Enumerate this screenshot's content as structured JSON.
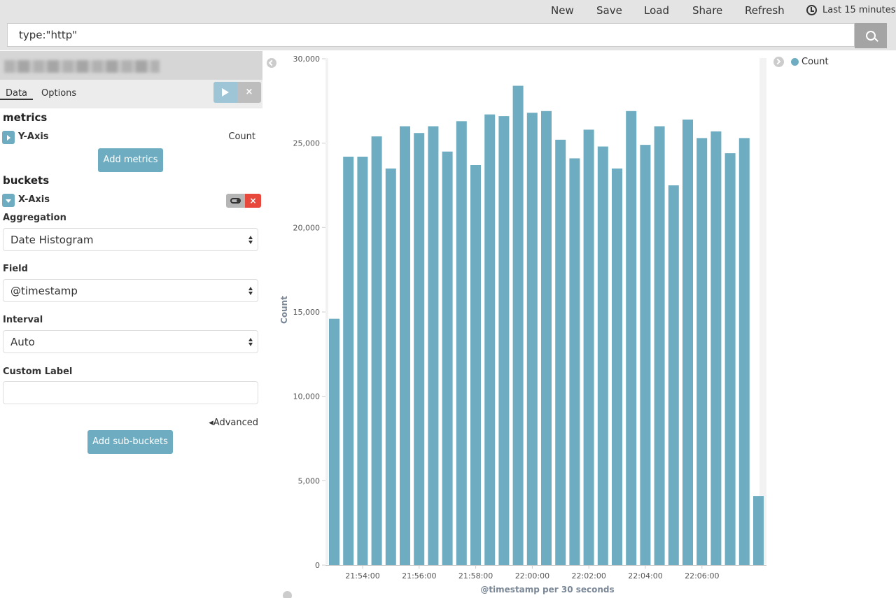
{
  "nav": {
    "new": "New",
    "save": "Save",
    "load": "Load",
    "share": "Share",
    "refresh": "Refresh",
    "time_range": "Last 15 minutes"
  },
  "query": {
    "value": "type:\"http\""
  },
  "sidebar": {
    "tabs": {
      "data": "Data",
      "options": "Options"
    },
    "apply_icon": "play-icon",
    "discard_label": "×",
    "metrics": {
      "heading": "metrics",
      "axis_label": "Y-Axis",
      "axis_value": "Count",
      "add_button": "Add metrics"
    },
    "buckets": {
      "heading": "buckets",
      "axis_label": "X-Axis",
      "delete_label": "×",
      "aggregation_label": "Aggregation",
      "aggregation_value": "Date Histogram",
      "field_label": "Field",
      "field_value": "@timestamp",
      "interval_label": "Interval",
      "interval_value": "Auto",
      "custom_label_label": "Custom Label",
      "custom_label_value": "",
      "advanced_label": "Advanced",
      "add_sub_button": "Add sub-buckets"
    }
  },
  "legend": {
    "label": "Count"
  },
  "colors": {
    "bar": "#6eadc1",
    "accent": "#6eadc1",
    "danger": "#e7483b"
  },
  "chart_data": {
    "type": "bar",
    "title": "",
    "xlabel": "@timestamp per 30 seconds",
    "ylabel": "Count",
    "ylim": [
      0,
      30000
    ],
    "yticks": [
      0,
      5000,
      10000,
      15000,
      20000,
      25000,
      30000
    ],
    "ytick_labels": [
      "0",
      "5,000",
      "10,000",
      "15,000",
      "20,000",
      "25,000",
      "30,000"
    ],
    "xtick_labels": [
      "21:54:00",
      "21:56:00",
      "21:58:00",
      "22:00:00",
      "22:02:00",
      "22:04:00",
      "22:06:00"
    ],
    "xtick_bar_index": [
      2.5,
      6.5,
      10.5,
      14.5,
      18.5,
      22.5,
      26.5
    ],
    "grid": false,
    "legend": "top-right",
    "series": [
      {
        "name": "Count",
        "values": [
          14600,
          24200,
          24200,
          25400,
          23500,
          26000,
          25600,
          26000,
          24500,
          26300,
          23700,
          26700,
          26600,
          28400,
          26800,
          26900,
          25200,
          24100,
          25800,
          24800,
          23500,
          26900,
          24900,
          26000,
          22500,
          26400,
          25300,
          25700,
          24400,
          25300,
          4100
        ]
      }
    ]
  }
}
